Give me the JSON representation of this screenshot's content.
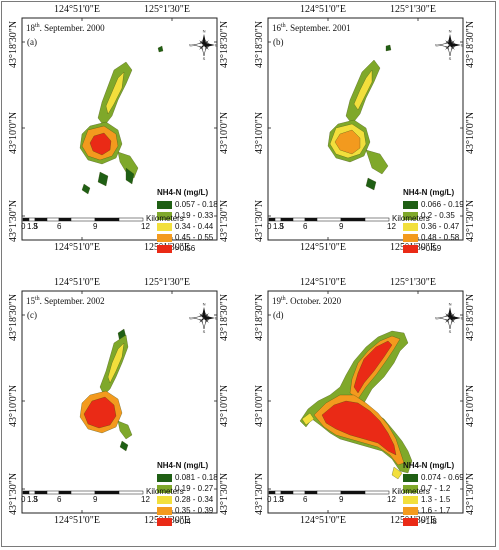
{
  "panels": [
    {
      "id": "a",
      "date_main": "18",
      "date_sup": "th",
      "date_rest": ". September. 2000",
      "letter": "(a)",
      "lon_labels": [
        "124°51'0\"E",
        "125°1'30\"E"
      ],
      "lat_labels": [
        "43°18'30\"N",
        "43°10'0\"N",
        "43°1'30\"N"
      ],
      "legend_title": "NH4-N (mg/L)",
      "classes": [
        "0.057 - 0.18",
        "0.19 - 0.33",
        "0.34 - 0.44",
        "0.45 - 0.55",
        ">0.56"
      ],
      "scale_unit": "Kilometers",
      "scale_ticks": [
        "0",
        "1.5",
        "3",
        "6",
        "9",
        "12"
      ]
    },
    {
      "id": "b",
      "date_main": "16",
      "date_sup": "th",
      "date_rest": ". September. 2001",
      "letter": "(b)",
      "lon_labels": [
        "124°51'0\"E",
        "125°1'30\"E"
      ],
      "lat_labels": [
        "43°18'30\"N",
        "43°10'0\"N",
        "43°1'30\"N"
      ],
      "legend_title": "NH4-N (mg/L)",
      "classes": [
        "0.066 - 0.19",
        "0.2 - 0.35",
        "0.36 - 0.47",
        "0.48 - 0.58",
        ">0.59"
      ],
      "scale_unit": "Kilometers",
      "scale_ticks": [
        "0",
        "1.5",
        "3",
        "6",
        "9",
        "12"
      ]
    },
    {
      "id": "c",
      "date_main": "15",
      "date_sup": "th",
      "date_rest": ". September. 2002",
      "letter": "(c)",
      "lon_labels": [
        "124°51'0\"E",
        "125°1'30\"E"
      ],
      "lat_labels": [
        "43°18'30\"N",
        "43°10'0\"N",
        "43°1'30\"N"
      ],
      "legend_title": "NH4-N (mg/L)",
      "classes": [
        "0.081 - 0.18",
        "0.19 - 0.27",
        "0.28 - 0.34",
        "0.35 - 0.39",
        ">0.4"
      ],
      "scale_unit": "Kilometers",
      "scale_ticks": [
        "0",
        "1.5",
        "3",
        "6",
        "9",
        "12"
      ]
    },
    {
      "id": "d",
      "date_main": "19",
      "date_sup": "th",
      "date_rest": ". October. 2020",
      "letter": "(d)",
      "lon_labels": [
        "124°51'0\"E",
        "125°1'30\"E"
      ],
      "lat_labels": [
        "43°18'30\"N",
        "43°10'0\"N",
        "43°1'30\"N"
      ],
      "legend_title": "NH4-N (mg/L)",
      "classes": [
        "0.074 - 0.69",
        "0.7 - 1.2",
        "1.3 - 1.5",
        "1.6 - 1.7",
        ">1.8"
      ],
      "scale_unit": "Kilometers",
      "scale_ticks": [
        "0",
        "1.5",
        "3",
        "6",
        "9",
        "12"
      ]
    }
  ],
  "class_colors": [
    "#1f5f14",
    "#7fa82a",
    "#f2df3c",
    "#f39a1e",
    "#ea2a16"
  ],
  "compass_letters": [
    "N",
    "E",
    "S",
    "W"
  ]
}
